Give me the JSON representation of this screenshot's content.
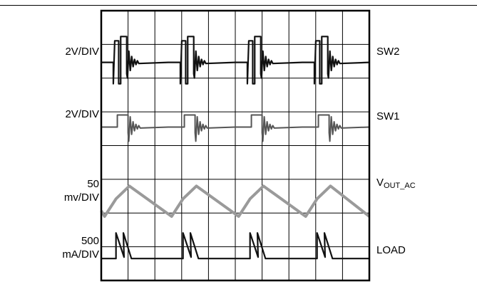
{
  "chart_data": {
    "type": "line",
    "title": "",
    "grid": true,
    "grid_divisions": {
      "x": 10,
      "y": 8
    },
    "channels": [
      {
        "name": "SW2",
        "scale_label": "2V/DIV",
        "color": "#111111",
        "description_values": {
          "low_level_div": 0,
          "high_level_div": 1.0
        }
      },
      {
        "name": "SW1",
        "scale_label": "2V/DIV",
        "color": "#555555",
        "description_values": {
          "low_level_div": 0,
          "high_level_div": 0.45
        }
      },
      {
        "name": "VOUT_AC",
        "scale_label_lines": [
          "50",
          "mv/DIV"
        ],
        "color": "#9a9a9a",
        "description_values": {
          "peak_div": 0.4,
          "trough_div": -0.6
        }
      },
      {
        "name": "LOAD",
        "scale_label_lines": [
          "500",
          "mA/DIV"
        ],
        "color": "#111111",
        "description_values": {
          "baseline_div": 0,
          "pulse_peak_div": 1.1
        }
      }
    ],
    "periods_visible": 4
  },
  "labels": {
    "sw2_scale": "2V/DIV",
    "sw1_scale": "2V/DIV",
    "vout_scale_line1": "50",
    "vout_scale_line2": "mv/DIV",
    "load_scale_line1": "500",
    "load_scale_line2": "mA/DIV",
    "sw2_name": "SW2",
    "sw1_name": "SW1",
    "vout_name_main": "V",
    "vout_name_sub": "OUT_AC",
    "load_name": "LOAD"
  }
}
